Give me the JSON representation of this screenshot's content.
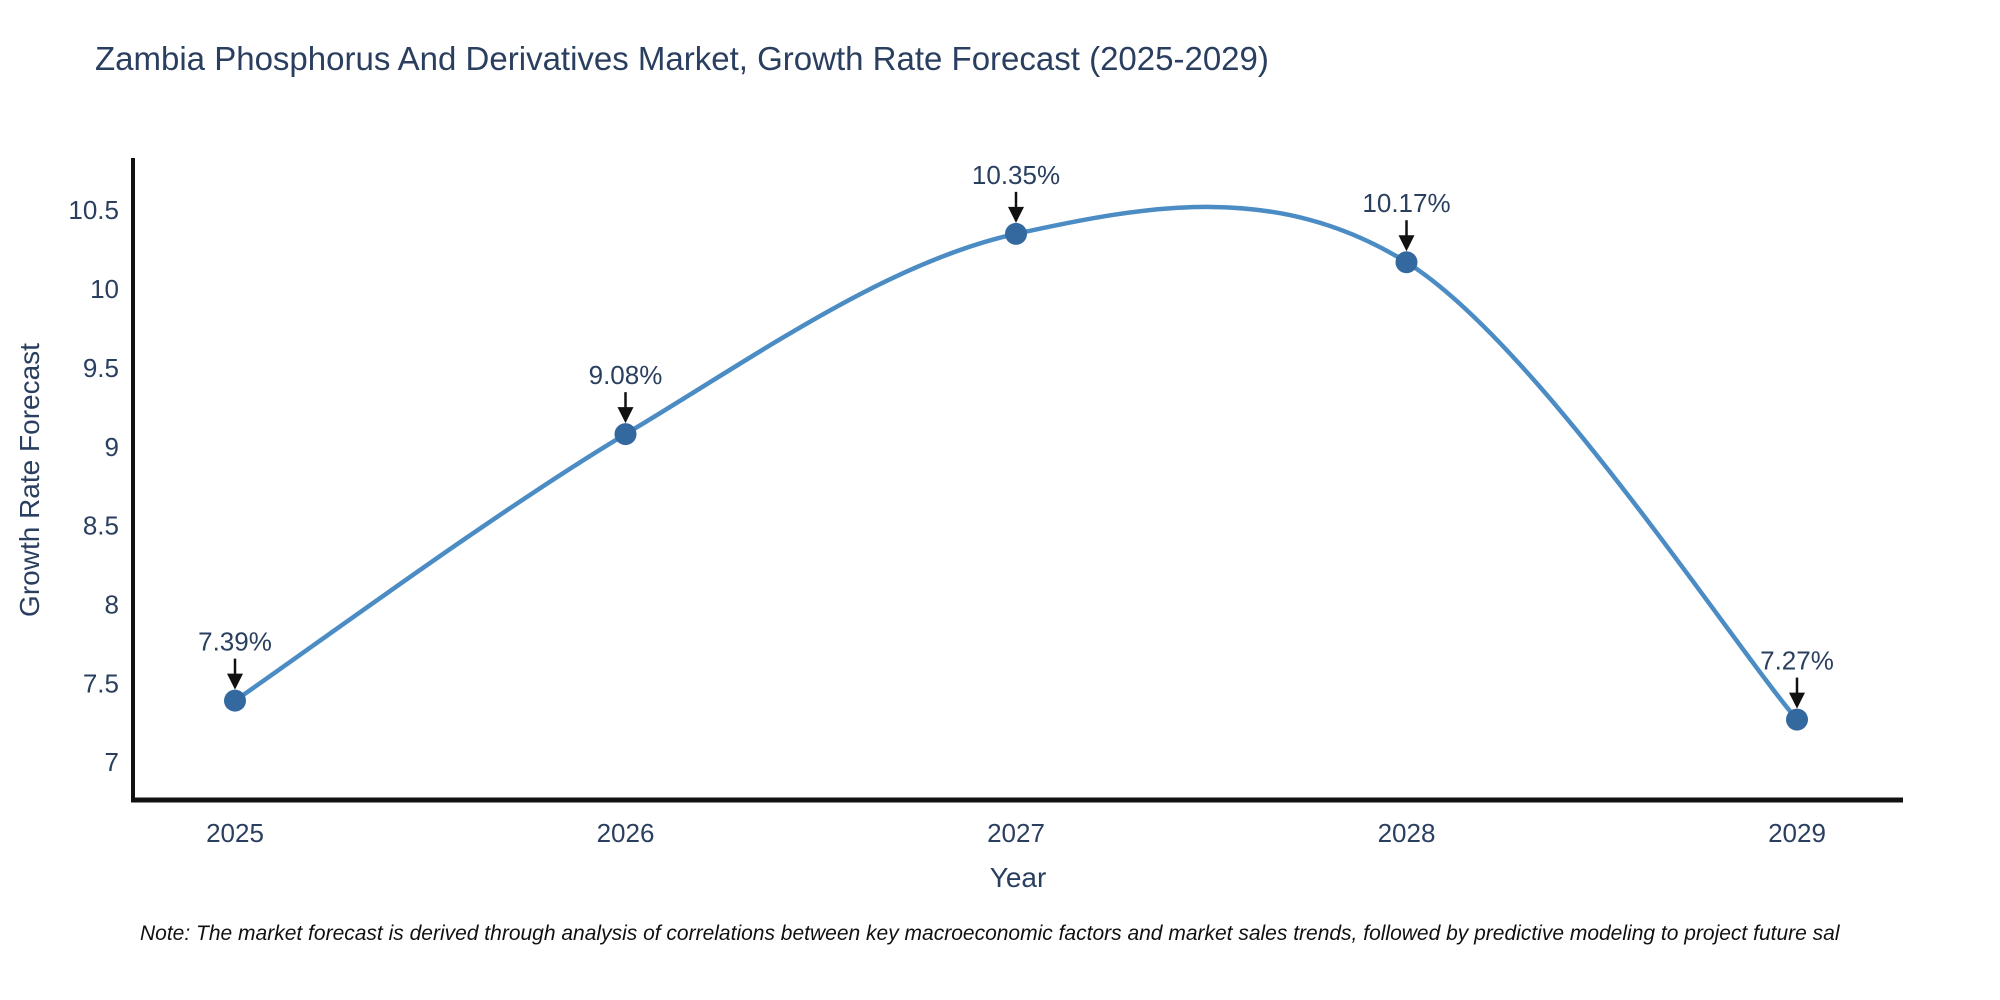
{
  "chart_data": {
    "type": "line",
    "line_shape": "spline",
    "title": "Zambia Phosphorus And Derivatives Market, Growth Rate Forecast (2025-2029)",
    "xlabel": "Year",
    "ylabel": "Growth Rate Forecast",
    "categories": [
      "2025",
      "2026",
      "2027",
      "2028",
      "2029"
    ],
    "values": [
      7.39,
      9.08,
      10.35,
      10.17,
      7.27
    ],
    "point_labels": [
      "7.39%",
      "9.08%",
      "10.35%",
      "10.17%",
      "7.27%"
    ],
    "yticks": [
      "7",
      "7.5",
      "8",
      "8.5",
      "9",
      "9.5",
      "10",
      "10.5"
    ],
    "ylim": [
      6.76,
      10.85
    ],
    "grid": false,
    "legend": "none",
    "markers": true,
    "annotation_style": "value label with down arrow to point",
    "colors": {
      "line": "#4b8cc4",
      "marker": "#33699e",
      "axis": "#111111",
      "text": "#2a3f5f",
      "annotation_arrow": "#111111"
    }
  },
  "footnote": "Note: The market forecast is derived through analysis of correlations between key macroeconomic factors and market sales trends, followed by predictive modeling to project future sal"
}
